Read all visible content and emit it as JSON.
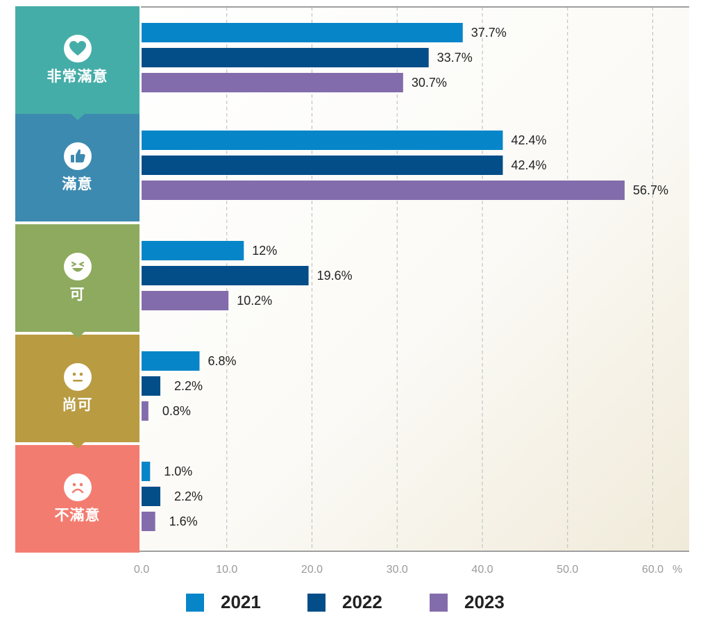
{
  "chart_data": {
    "type": "bar",
    "orientation": "horizontal",
    "categories": [
      "非常滿意",
      "滿意",
      "可",
      "尚可",
      "不滿意"
    ],
    "category_icons": [
      "heart-icon",
      "thumbs-up-icon",
      "laughing-face-icon",
      "neutral-face-icon",
      "sad-face-icon"
    ],
    "category_colors": [
      "#45ADA8",
      "#3D8AB0",
      "#8DAA5E",
      "#B99B42",
      "#F37C70"
    ],
    "series": [
      {
        "name": "2021",
        "color": "#0785C9",
        "values": [
          37.7,
          42.4,
          12,
          6.8,
          1.0
        ],
        "labels": [
          "37.7%",
          "42.4%",
          "12%",
          "6.8%",
          "1.0%"
        ]
      },
      {
        "name": "2022",
        "color": "#034D88",
        "values": [
          33.7,
          42.4,
          19.6,
          2.2,
          2.2
        ],
        "labels": [
          "33.7%",
          "42.4%",
          "19.6%",
          "2.2%",
          "2.2%"
        ]
      },
      {
        "name": "2023",
        "color": "#836CAC",
        "values": [
          30.7,
          56.7,
          10.2,
          0.8,
          1.6
        ],
        "labels": [
          "30.7%",
          "56.7%",
          "10.2%",
          "0.8%",
          "1.6%"
        ]
      }
    ],
    "xlim": [
      0,
      64
    ],
    "xticks": [
      0,
      10,
      20,
      30,
      40,
      50,
      60
    ],
    "xtick_labels": [
      "0.0",
      "10.0",
      "20.0",
      "30.0",
      "40.0",
      "50.0",
      "60.0"
    ],
    "xunit": "%",
    "grid": true,
    "legend": "bottom"
  }
}
